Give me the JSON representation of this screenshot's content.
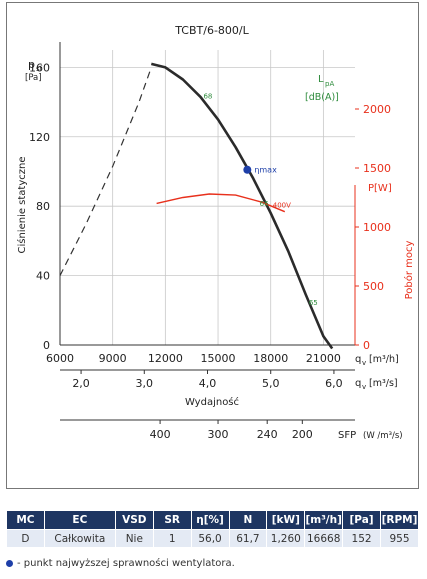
{
  "colors": {
    "curve": "#2b2b2b",
    "power": "#e8301c",
    "efficiency": "#1e3fa8",
    "contour": "#2e8b3c",
    "header": "#1e3561"
  },
  "chart_data": {
    "type": "line",
    "title": "TCBT/6-800/L",
    "y_symbol": "p",
    "y_symbol_sub": "sf",
    "y_unit": "[Pa]",
    "ylabel": "Ciśnienie statyczne",
    "ylim": [
      0,
      170
    ],
    "yticks": [
      0,
      40,
      80,
      120,
      160
    ],
    "x_m3h": {
      "label": "q",
      "sub": "v",
      "unit": "[m³/h]",
      "range": [
        6000,
        22800
      ],
      "ticks": [
        6000,
        9000,
        12000,
        15000,
        18000,
        21000
      ]
    },
    "x_m3s": {
      "label": "q",
      "sub": "v",
      "unit": "[m³/s]",
      "ticks": [
        2.0,
        3.0,
        4.0,
        5.0,
        6.0
      ],
      "tick_labels": [
        "2,0",
        "3,0",
        "4,0",
        "5,0",
        "6,0"
      ],
      "factor": 3600
    },
    "xlabel": "Wydajność",
    "power_axis": {
      "label": "Pobór mocy",
      "unit": "P[W]",
      "ticks": [
        0,
        500,
        1000,
        1500,
        2000
      ],
      "range": [
        0,
        2500
      ]
    },
    "sfp_axis": {
      "label": "SFP",
      "unit": "(W /m³/s)",
      "ticks": [
        400,
        300,
        240,
        200
      ]
    },
    "noise_label": {
      "symbol": "L",
      "sub": "pA",
      "unit": "[dB(A)]"
    },
    "fan_curve_dashed": {
      "x": [
        6000,
        7500,
        9000,
        10500,
        11200
      ],
      "y": [
        40,
        70,
        103,
        140,
        160
      ]
    },
    "fan_curve": {
      "x": [
        11200,
        12000,
        13000,
        14000,
        15000,
        16000,
        17000,
        18000,
        19000,
        20000,
        21000,
        21500
      ],
      "y": [
        162,
        160,
        153,
        143,
        130,
        114,
        96,
        76,
        54,
        29,
        5,
        -5
      ]
    },
    "power_curve": {
      "label": "400V",
      "x": [
        11500,
        13000,
        14500,
        16000,
        17500,
        18800
      ],
      "y": [
        1200,
        1250,
        1280,
        1270,
        1210,
        1130
      ]
    },
    "efficiency_point": {
      "x": 16668,
      "y": 101,
      "label": "ηmax"
    },
    "noise_contours": [
      {
        "x": 14000,
        "y": 142,
        "label": "68"
      },
      {
        "x": 17200,
        "y": 80,
        "label": "66"
      },
      {
        "x": 20000,
        "y": 23,
        "label": "65"
      }
    ]
  },
  "table": {
    "headers": [
      "MC",
      "EC",
      "VSD",
      "SR",
      "η[%]",
      "N",
      "[kW]",
      "[m³/h]",
      "[Pa]",
      "[RPM]"
    ],
    "row": [
      "D",
      "Całkowita",
      "Nie",
      "1",
      "56,0",
      "61,7",
      "1,260",
      "16668",
      "152",
      "955"
    ]
  },
  "footnote": "- punkt najwyższej sprawności wentylatora."
}
